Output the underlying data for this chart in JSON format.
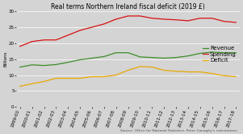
{
  "title": "Real terms Northern Ireland fiscal deficit (2019 £)",
  "ylabel": "Billions",
  "source": "Source: Office for National Statistics, Peter Conaghy's calculations.",
  "years": [
    "1999-00",
    "2000-01",
    "2001-02",
    "2002-03",
    "2003-04",
    "2004-05",
    "2005-06",
    "2006-07",
    "2007-08",
    "2008-09",
    "2009-10",
    "2010-11",
    "2011-12",
    "2012-13",
    "2013-14",
    "2014-15",
    "2015-16",
    "2016-17",
    "2017-18"
  ],
  "revenue": [
    12.5,
    13.2,
    13.0,
    13.3,
    14.0,
    14.8,
    15.3,
    15.8,
    17.0,
    17.0,
    15.7,
    15.5,
    15.3,
    15.5,
    16.0,
    16.8,
    17.2,
    17.0,
    17.0
  ],
  "spending": [
    19.0,
    20.5,
    21.0,
    21.0,
    22.5,
    24.0,
    25.0,
    26.0,
    27.5,
    28.5,
    28.5,
    27.8,
    27.5,
    27.3,
    27.0,
    27.8,
    27.8,
    26.8,
    26.5
  ],
  "deficit": [
    6.5,
    7.3,
    8.0,
    9.0,
    9.0,
    9.0,
    9.5,
    9.5,
    10.0,
    11.5,
    12.7,
    12.5,
    11.5,
    11.2,
    11.0,
    11.0,
    10.5,
    9.8,
    9.5
  ],
  "revenue_color": "#3a8c28",
  "spending_color": "#d91010",
  "deficit_color": "#e8a800",
  "background_color": "#d4d4d4",
  "ylim": [
    0,
    30
  ],
  "yticks": [
    0,
    5,
    10,
    15,
    20,
    25,
    30
  ],
  "title_fontsize": 5.5,
  "legend_fontsize": 5.0,
  "tick_fontsize": 4.0,
  "source_fontsize": 3.2,
  "ylabel_fontsize": 4.0,
  "linewidth": 0.9
}
